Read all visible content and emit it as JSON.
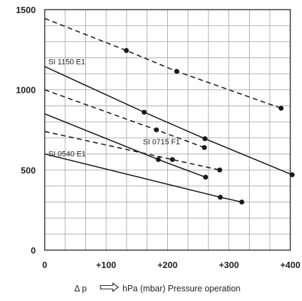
{
  "chart_data": {
    "type": "line",
    "xlabel": {
      "prefix": "Δ p",
      "arrow_icon": "hollow-right-arrow",
      "text": "hPa (mbar) Pressure operation"
    },
    "ylabel": "",
    "title": "",
    "xlim": [
      0,
      400
    ],
    "ylim": [
      0,
      1500
    ],
    "x_ticks": [
      {
        "value": 0,
        "label": "0"
      },
      {
        "value": 100,
        "label": "+100"
      },
      {
        "value": 200,
        "label": "+200"
      },
      {
        "value": 300,
        "label": "+300"
      },
      {
        "value": 400,
        "label": "+400"
      }
    ],
    "y_ticks": [
      {
        "value": 0,
        "label": "0"
      },
      {
        "value": 500,
        "label": "500"
      },
      {
        "value": 1000,
        "label": "1000"
      },
      {
        "value": 1500,
        "label": "1500"
      }
    ],
    "grid": {
      "x_step": 33.33,
      "y_step": 100,
      "on": true
    },
    "series": [
      {
        "style": "dashed",
        "x": [
          0,
          133,
          215,
          385
        ],
        "y": [
          1445,
          1245,
          1115,
          885
        ]
      },
      {
        "style": "solid",
        "x": [
          0,
          162,
          261,
          403
        ],
        "y": [
          1145,
          860,
          695,
          470
        ]
      },
      {
        "style": "dashed",
        "x": [
          0,
          182,
          260
        ],
        "y": [
          1000,
          750,
          640
        ]
      },
      {
        "style": "solid",
        "x": [
          0,
          185,
          262
        ],
        "y": [
          850,
          565,
          455
        ]
      },
      {
        "style": "dashed",
        "x": [
          0,
          208,
          285
        ],
        "y": [
          740,
          565,
          500
        ]
      },
      {
        "style": "solid",
        "x": [
          0,
          286,
          321
        ],
        "y": [
          600,
          330,
          300
        ]
      }
    ],
    "annotations": [
      {
        "text": "SI 1150 E1",
        "x": 6,
        "y": 1160
      },
      {
        "text": "SI 0715 F1",
        "x": 160,
        "y": 660
      },
      {
        "text": "SI 0540 E1",
        "x": 6,
        "y": 585
      }
    ],
    "colors": {
      "line": "#1a1a1a",
      "grid": "#a8a8a8",
      "marker": "#1a1a1a",
      "background": "#ffffff"
    }
  }
}
